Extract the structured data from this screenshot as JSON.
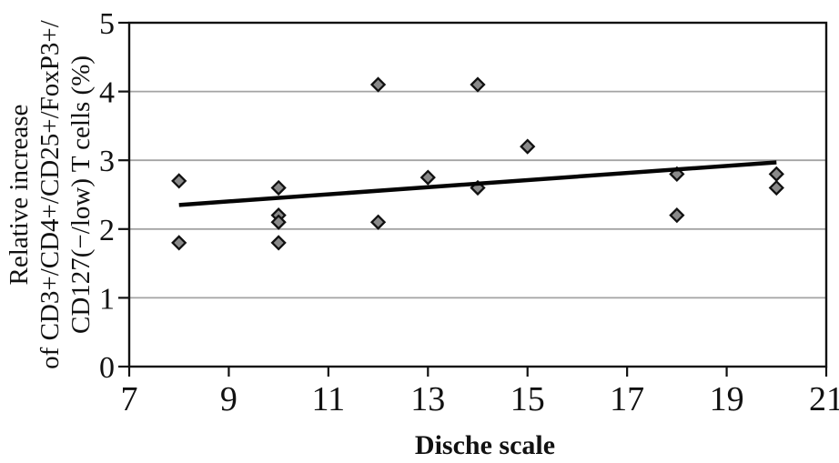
{
  "chart_data": {
    "type": "scatter",
    "xlabel": "Dische scale",
    "ylabel_lines": [
      "Relative increase",
      "of CD3+/CD4+/CD25+/FoxP3+/",
      "CD127(−/low) T cells (%)"
    ],
    "xlim": [
      7,
      21
    ],
    "ylim": [
      0,
      5
    ],
    "x_ticks": [
      7,
      9,
      11,
      13,
      15,
      17,
      19,
      21
    ],
    "y_ticks": [
      0,
      1,
      2,
      3,
      4,
      5
    ],
    "grid": "horizontal gray gridlines at y = 1,2,3,4; black frame on all four sides",
    "legend": "none",
    "marker": "diamond",
    "points": [
      {
        "x": 8,
        "y": 2.7
      },
      {
        "x": 8,
        "y": 1.8
      },
      {
        "x": 10,
        "y": 2.6
      },
      {
        "x": 10,
        "y": 2.2
      },
      {
        "x": 10,
        "y": 2.1
      },
      {
        "x": 10,
        "y": 1.8
      },
      {
        "x": 12,
        "y": 4.1
      },
      {
        "x": 12,
        "y": 2.1
      },
      {
        "x": 13,
        "y": 2.75
      },
      {
        "x": 14,
        "y": 4.1
      },
      {
        "x": 14,
        "y": 2.6
      },
      {
        "x": 15,
        "y": 3.2
      },
      {
        "x": 18,
        "y": 2.8
      },
      {
        "x": 18,
        "y": 2.2
      },
      {
        "x": 20,
        "y": 2.8
      },
      {
        "x": 20,
        "y": 2.6
      }
    ],
    "trendline": {
      "x1": 8,
      "y1": 2.35,
      "x2": 20,
      "y2": 2.97
    },
    "colors": {
      "marker_fill": "#8a8a8a",
      "marker_stroke": "#111111",
      "gridline": "#a3a3a3",
      "axis": "#111111",
      "trend": "#050505",
      "text": "#111111"
    }
  }
}
